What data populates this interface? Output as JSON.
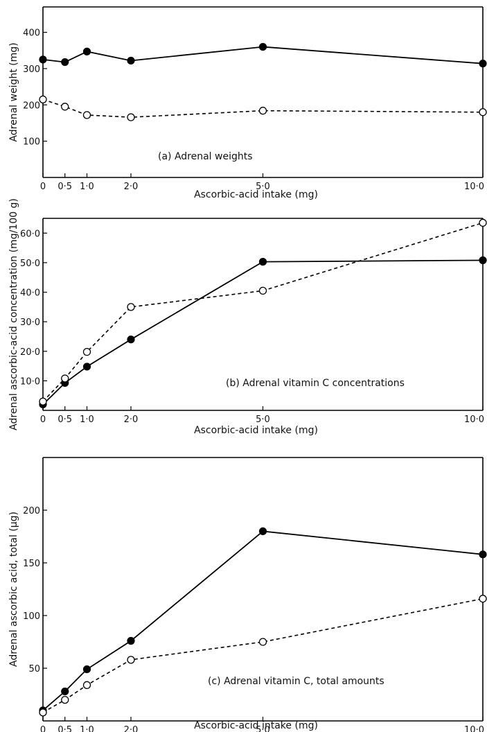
{
  "chart_data": [
    {
      "type": "line",
      "caption": "(a) Adrenal weights",
      "xlabel": "Ascorbic-acid intake (mg)",
      "ylabel": "Adrenal weight (mg)",
      "x": [
        0,
        0.5,
        1.0,
        2.0,
        5.0,
        10.0
      ],
      "x_tick_values": [
        0,
        0.5,
        1.0,
        2.0,
        5.0,
        10.0
      ],
      "x_tick_labels": [
        "0",
        "0·5",
        "1·0",
        "2·0",
        "5·0",
        "10·0"
      ],
      "xlim": [
        0,
        10.0
      ],
      "y_tick_values": [
        100,
        200,
        300,
        400
      ],
      "y_tick_labels": [
        "100",
        "200",
        "300",
        "400"
      ],
      "ylim": [
        0,
        470
      ],
      "series": [
        {
          "marker": "filled",
          "line": "solid",
          "values": [
            325,
            318,
            347,
            322,
            360,
            314
          ]
        },
        {
          "marker": "open",
          "line": "dashed",
          "values": [
            215,
            195,
            172,
            166,
            184,
            180
          ]
        }
      ]
    },
    {
      "type": "line",
      "caption": "(b) Adrenal vitamin C concentrations",
      "xlabel": "Ascorbic-acid intake (mg)",
      "ylabel": "Adrenal ascorbic-acid concentration (mg/100 g)",
      "x": [
        0,
        0.5,
        1.0,
        2.0,
        5.0,
        10.0
      ],
      "x_tick_values": [
        0,
        0.5,
        1.0,
        2.0,
        5.0,
        10.0
      ],
      "x_tick_labels": [
        "0",
        "0·5",
        "1·0",
        "2·0",
        "5·0",
        "10·0"
      ],
      "xlim": [
        0,
        10.0
      ],
      "y_tick_values": [
        10,
        20,
        30,
        40,
        50,
        60
      ],
      "y_tick_labels": [
        "10·0",
        "20·0",
        "30·0",
        "40·0",
        "50·0",
        "60·0"
      ],
      "ylim": [
        0,
        65
      ],
      "series": [
        {
          "marker": "filled",
          "line": "solid",
          "values": [
            2,
            9.3,
            14.8,
            24,
            50.3,
            50.8
          ]
        },
        {
          "marker": "open",
          "line": "dashed",
          "values": [
            3,
            10.8,
            19.8,
            35,
            40.5,
            63.5
          ]
        }
      ]
    },
    {
      "type": "line",
      "caption": "(c) Adrenal vitamin C, total amounts",
      "xlabel": "Ascorbic-acid intake (mg)",
      "ylabel": "Adrenal ascorbic acid, total (µg)",
      "x": [
        0,
        0.5,
        1.0,
        2.0,
        5.0,
        10.0
      ],
      "x_tick_values": [
        0,
        0.5,
        1.0,
        2.0,
        5.0,
        10.0
      ],
      "x_tick_labels": [
        "0",
        "0·5",
        "1·0",
        "2·0",
        "5·0",
        "10·0"
      ],
      "xlim": [
        0,
        10.0
      ],
      "y_tick_values": [
        50,
        100,
        150,
        200
      ],
      "y_tick_labels": [
        "50",
        "100",
        "150",
        "200"
      ],
      "ylim": [
        0,
        250
      ],
      "series": [
        {
          "marker": "filled",
          "line": "solid",
          "values": [
            10,
            28,
            49,
            76,
            180,
            158
          ]
        },
        {
          "marker": "open",
          "line": "dashed",
          "values": [
            8,
            20,
            34,
            58,
            75,
            116
          ]
        }
      ]
    }
  ]
}
